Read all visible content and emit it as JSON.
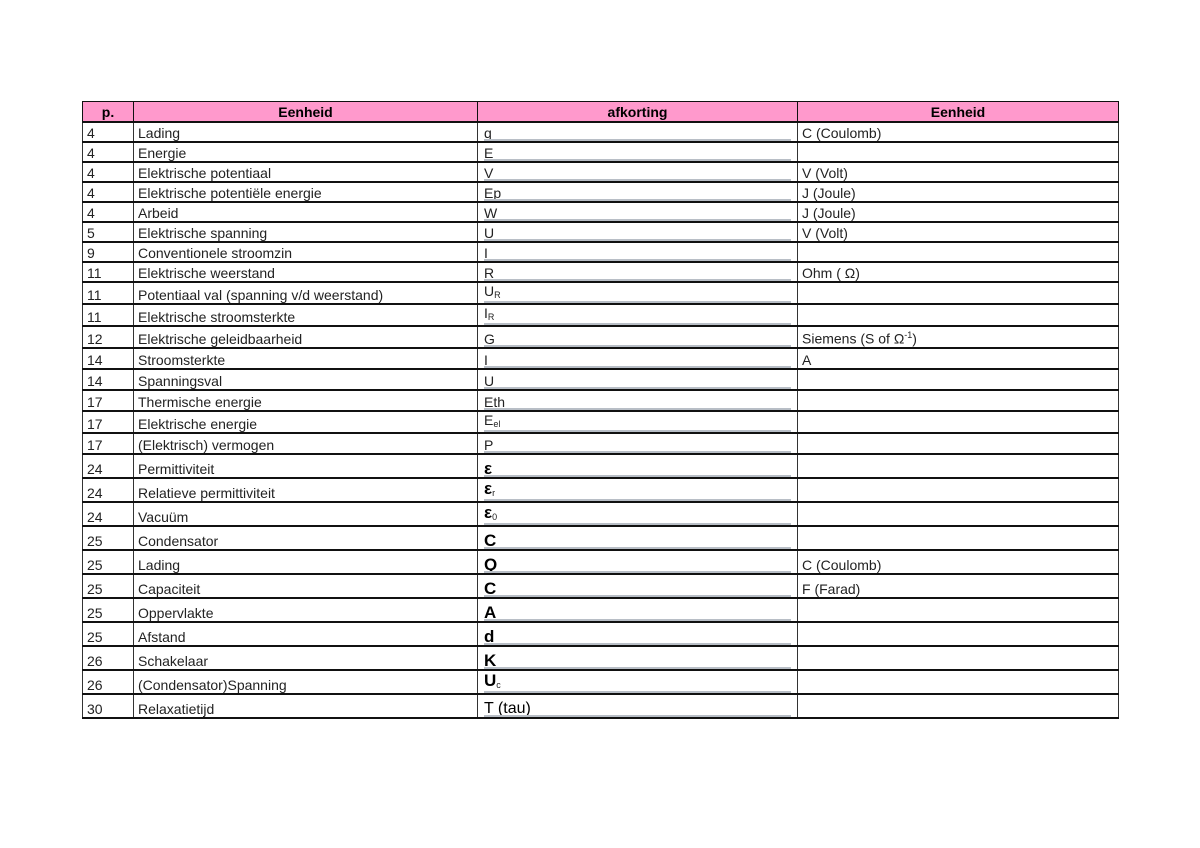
{
  "table": {
    "headers": [
      "p.",
      "Eenheid",
      "afkorting",
      "Eenheid"
    ],
    "rows": [
      {
        "p": "4",
        "name": "Lading",
        "sym": "q",
        "sub": "",
        "unit": "C (Coulomb)"
      },
      {
        "p": "4",
        "name": "Energie",
        "sym": "E",
        "sub": "",
        "unit": ""
      },
      {
        "p": "4",
        "name": "Elektrische potentiaal",
        "sym": "V",
        "sub": "",
        "unit": "V (Volt)"
      },
      {
        "p": "4",
        "name": "Elektrische potentiële energie",
        "sym": "Ep",
        "sub": "",
        "unit": "J (Joule)"
      },
      {
        "p": "4",
        "name": "Arbeid",
        "sym": "W",
        "sub": "",
        "unit": "J (Joule)"
      },
      {
        "p": "5",
        "name": "Elektrische spanning",
        "sym": "U",
        "sub": "",
        "unit": "V (Volt)"
      },
      {
        "p": "9",
        "name": "Conventionele stroomzin",
        "sym": "I",
        "sub": "",
        "unit": ""
      },
      {
        "p": "11",
        "name": "Elektrische weerstand",
        "sym": "R",
        "sub": "",
        "unit": "Ohm ( Ω)"
      },
      {
        "p": "11",
        "name": "Potentiaal val (spanning v/d weerstand)",
        "sym": "U",
        "sub": "R",
        "unit": ""
      },
      {
        "p": "11",
        "name": "Elektrische stroomsterkte",
        "sym": "I",
        "sub": "R",
        "unit": ""
      },
      {
        "p": "12",
        "name": "Elektrische geleidbaarheid",
        "sym": "G",
        "sub": "",
        "unit": "Siemens (S of Ω",
        "unit_sup": "-1",
        "unit_tail": ")"
      },
      {
        "p": "14",
        "name": "Stroomsterkte",
        "sym": "I",
        "sub": "",
        "unit": "A"
      },
      {
        "p": "14",
        "name": "Spanningsval",
        "sym": "U",
        "sub": "",
        "unit": ""
      },
      {
        "p": "17",
        "name": "Thermische energie",
        "sym": "Eth",
        "sub": "",
        "unit": ""
      },
      {
        "p": "17",
        "name": "Elektrische energie",
        "sym": "E",
        "sub": "el",
        "unit": ""
      },
      {
        "p": "17",
        "name": "(Elektrisch) vermogen",
        "sym": "P",
        "sub": "",
        "unit": ""
      },
      {
        "p": "24",
        "name": "Permittiviteit",
        "sym": "ε",
        "sub": "",
        "unit": ""
      },
      {
        "p": "24",
        "name": "Relatieve permittiviteit",
        "sym": "ε",
        "sub": "r",
        "unit": ""
      },
      {
        "p": "24",
        "name": "Vacuüm",
        "sym": "ε",
        "sub": "0",
        "unit": ""
      },
      {
        "p": "25",
        "name": "Condensator",
        "sym": "C",
        "sub": "",
        "unit": ""
      },
      {
        "p": "25",
        "name": "Lading",
        "sym": "Q",
        "sub": "",
        "unit": "C (Coulomb)"
      },
      {
        "p": "25",
        "name": "Capaciteit",
        "sym": "C",
        "sub": "",
        "unit": "F (Farad)"
      },
      {
        "p": "25",
        "name": "Oppervlakte",
        "sym": "A",
        "sub": "",
        "unit": ""
      },
      {
        "p": "25",
        "name": "Afstand",
        "sym": "d",
        "sub": "",
        "unit": ""
      },
      {
        "p": "26",
        "name": "Schakelaar",
        "sym": "K",
        "sub": "",
        "unit": ""
      },
      {
        "p": "26",
        "name": "(Condensator)Spanning",
        "sym": "U",
        "sub": "c",
        "unit": ""
      },
      {
        "p": "30",
        "name": "Relaxatietijd",
        "sym": "T (tau)",
        "sub": "",
        "unit": ""
      }
    ]
  }
}
